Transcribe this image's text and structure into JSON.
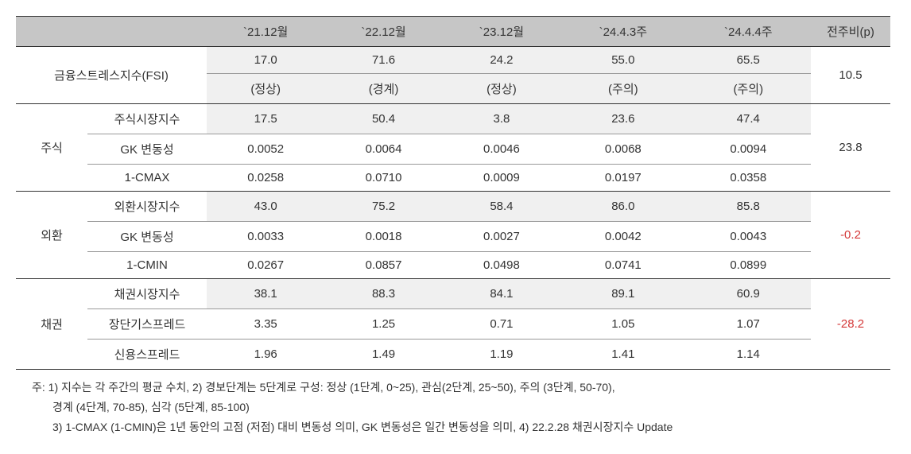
{
  "headers": {
    "blank": "",
    "col1": "`21.12월",
    "col2": "`22.12월",
    "col3": "`23.12월",
    "col4": "`24.4.3주",
    "col5": "`24.4.4주",
    "delta": "전주비(p)"
  },
  "fsi": {
    "label": "금융스트레스지수(FSI)",
    "values": [
      "17.0",
      "71.6",
      "24.2",
      "55.0",
      "65.5"
    ],
    "statuses": [
      "(정상)",
      "(경계)",
      "(정상)",
      "(주의)",
      "(주의)"
    ],
    "delta": "10.5",
    "delta_negative": false
  },
  "groups": [
    {
      "label": "주식",
      "delta": "23.8",
      "delta_negative": false,
      "rows": [
        {
          "label": "주식시장지수",
          "values": [
            "17.5",
            "50.4",
            "3.8",
            "23.6",
            "47.4"
          ],
          "shaded": true
        },
        {
          "label": "GK 변동성",
          "values": [
            "0.0052",
            "0.0064",
            "0.0046",
            "0.0068",
            "0.0094"
          ],
          "shaded": false
        },
        {
          "label": "1-CMAX",
          "values": [
            "0.0258",
            "0.0710",
            "0.0009",
            "0.0197",
            "0.0358"
          ],
          "shaded": false
        }
      ]
    },
    {
      "label": "외환",
      "delta": "-0.2",
      "delta_negative": true,
      "rows": [
        {
          "label": "외환시장지수",
          "values": [
            "43.0",
            "75.2",
            "58.4",
            "86.0",
            "85.8"
          ],
          "shaded": true
        },
        {
          "label": "GK 변동성",
          "values": [
            "0.0033",
            "0.0018",
            "0.0027",
            "0.0042",
            "0.0043"
          ],
          "shaded": false
        },
        {
          "label": "1-CMIN",
          "values": [
            "0.0267",
            "0.0857",
            "0.0498",
            "0.0741",
            "0.0899"
          ],
          "shaded": false
        }
      ]
    },
    {
      "label": "채권",
      "delta": "-28.2",
      "delta_negative": true,
      "rows": [
        {
          "label": "채권시장지수",
          "values": [
            "38.1",
            "88.3",
            "84.1",
            "89.1",
            "60.9"
          ],
          "shaded": true
        },
        {
          "label": "장단기스프레드",
          "values": [
            "3.35",
            "1.25",
            "0.71",
            "1.05",
            "1.07"
          ],
          "shaded": false
        },
        {
          "label": "신용스프레드",
          "values": [
            "1.96",
            "1.49",
            "1.19",
            "1.41",
            "1.14"
          ],
          "shaded": false
        }
      ]
    }
  ],
  "footnotes": {
    "line1": "주: 1) 지수는 각 주간의 평균 수치, 2) 경보단계는 5단계로 구성: 정상 (1단계, 0~25), 관심(2단계, 25~50), 주의 (3단계, 50-70),",
    "line2": "경계 (4단계, 70-85), 심각 (5단계, 85-100)",
    "line3": "3) 1-CMAX (1-CMIN)은 1년 동안의 고점 (저점) 대비 변동성 의미, GK 변동성은 일간 변동성을 의미, 4) 22.2.28 채권시장지수 Update"
  },
  "colors": {
    "header_bg": "#c6c6c6",
    "shaded_bg": "#f0f0f0",
    "negative": "#d43838",
    "text": "#333333",
    "border_dark": "#333333",
    "border_light": "#999999"
  }
}
